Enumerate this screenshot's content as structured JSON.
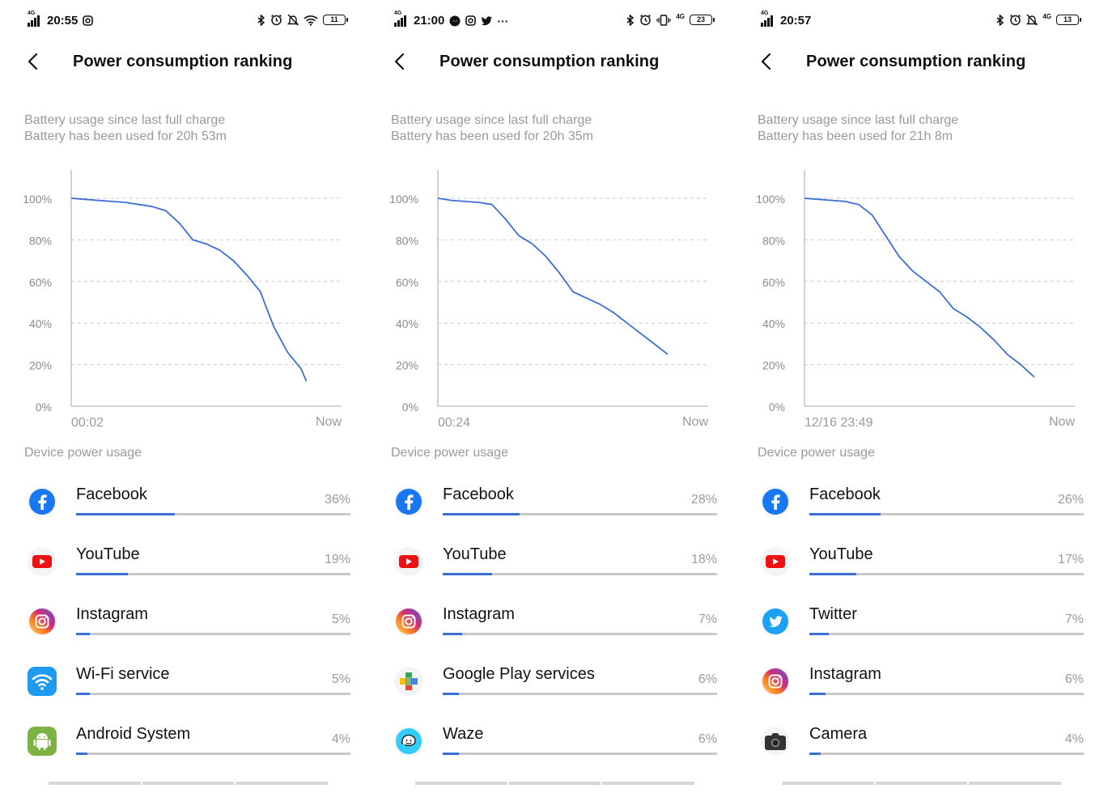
{
  "common": {
    "title": "Power consumption ranking",
    "sub_line1": "Battery usage since last full charge",
    "section_label": "Device power usage",
    "now_label": "Now",
    "accent": "#3b6fd6"
  },
  "panels": [
    {
      "time": "20:55",
      "network": "4G",
      "battery_level": "11",
      "status_icons_left": [
        "instagram-icon"
      ],
      "status_icons_right": [
        "bluetooth-icon",
        "alarm-icon",
        "mute-icon",
        "wifi-icon"
      ],
      "sub_line2": "Battery has been used for 20h 53m",
      "start_label": "00:02",
      "chart_data": {
        "type": "line",
        "yticks": [
          "100%",
          "80%",
          "60%",
          "40%",
          "20%",
          "0%"
        ],
        "ylim": [
          0,
          100
        ],
        "x": [
          0,
          5,
          10,
          15,
          20,
          25,
          30,
          35,
          40,
          45,
          50,
          55,
          60,
          65,
          70,
          72,
          75,
          80,
          85,
          87
        ],
        "values": [
          100,
          99.5,
          99,
          98.5,
          98,
          97,
          96,
          94,
          88,
          80,
          78,
          75,
          70,
          63,
          55,
          48,
          38,
          26,
          18,
          12
        ]
      },
      "apps": [
        {
          "name": "Facebook",
          "pct": "36%",
          "share": 36,
          "icon": "facebook-icon"
        },
        {
          "name": "YouTube",
          "pct": "19%",
          "share": 19,
          "icon": "youtube-icon"
        },
        {
          "name": "Instagram",
          "pct": "5%",
          "share": 5,
          "icon": "instagram-icon"
        },
        {
          "name": "Wi-Fi service",
          "pct": "5%",
          "share": 5,
          "icon": "wifi-icon"
        },
        {
          "name": "Android System",
          "pct": "4%",
          "share": 4,
          "icon": "android-icon"
        }
      ]
    },
    {
      "time": "21:00",
      "network": "4G",
      "battery_level": "23",
      "status_icons_left": [
        "messenger-icon",
        "instagram-icon",
        "twitter-icon",
        "more-icon"
      ],
      "status_icons_right": [
        "bluetooth-icon",
        "alarm-icon",
        "vibrate-icon",
        "4g-icon"
      ],
      "sub_line2": "Battery has been used for 20h 35m",
      "start_label": "00:24",
      "chart_data": {
        "type": "line",
        "yticks": [
          "100%",
          "80%",
          "60%",
          "40%",
          "20%",
          "0%"
        ],
        "ylim": [
          0,
          100
        ],
        "x": [
          0,
          5,
          10,
          15,
          20,
          25,
          30,
          35,
          40,
          45,
          50,
          55,
          60,
          65,
          70,
          75,
          80,
          85
        ],
        "values": [
          100,
          99,
          98.5,
          98,
          97,
          90,
          82,
          78,
          72,
          64,
          55,
          52,
          49,
          45,
          40,
          35,
          30,
          25
        ]
      },
      "apps": [
        {
          "name": "Facebook",
          "pct": "28%",
          "share": 28,
          "icon": "facebook-icon"
        },
        {
          "name": "YouTube",
          "pct": "18%",
          "share": 18,
          "icon": "youtube-icon"
        },
        {
          "name": "Instagram",
          "pct": "7%",
          "share": 7,
          "icon": "instagram-icon"
        },
        {
          "name": "Google Play services",
          "pct": "6%",
          "share": 6,
          "icon": "google-play-services-icon"
        },
        {
          "name": "Waze",
          "pct": "6%",
          "share": 6,
          "icon": "waze-icon"
        }
      ]
    },
    {
      "time": "20:57",
      "network": "4G",
      "battery_level": "13",
      "status_icons_left": [],
      "status_icons_right": [
        "bluetooth-icon",
        "alarm-icon",
        "mute-icon",
        "4g-icon"
      ],
      "sub_line2": "Battery has been used for 21h 8m",
      "start_label": "12/16 23:49",
      "chart_data": {
        "type": "line",
        "yticks": [
          "100%",
          "80%",
          "60%",
          "40%",
          "20%",
          "0%"
        ],
        "ylim": [
          0,
          100
        ],
        "x": [
          0,
          5,
          10,
          15,
          20,
          25,
          30,
          35,
          40,
          45,
          50,
          55,
          60,
          65,
          70,
          75,
          80,
          85
        ],
        "values": [
          100,
          99.5,
          99,
          98.5,
          97,
          92,
          82,
          72,
          65,
          60,
          55,
          47,
          43,
          38,
          32,
          25,
          20,
          14
        ]
      },
      "apps": [
        {
          "name": "Facebook",
          "pct": "26%",
          "share": 26,
          "icon": "facebook-icon"
        },
        {
          "name": "YouTube",
          "pct": "17%",
          "share": 17,
          "icon": "youtube-icon"
        },
        {
          "name": "Twitter",
          "pct": "7%",
          "share": 7,
          "icon": "twitter-icon"
        },
        {
          "name": "Instagram",
          "pct": "6%",
          "share": 6,
          "icon": "instagram-icon"
        },
        {
          "name": "Camera",
          "pct": "4%",
          "share": 4,
          "icon": "camera-icon"
        }
      ]
    }
  ]
}
